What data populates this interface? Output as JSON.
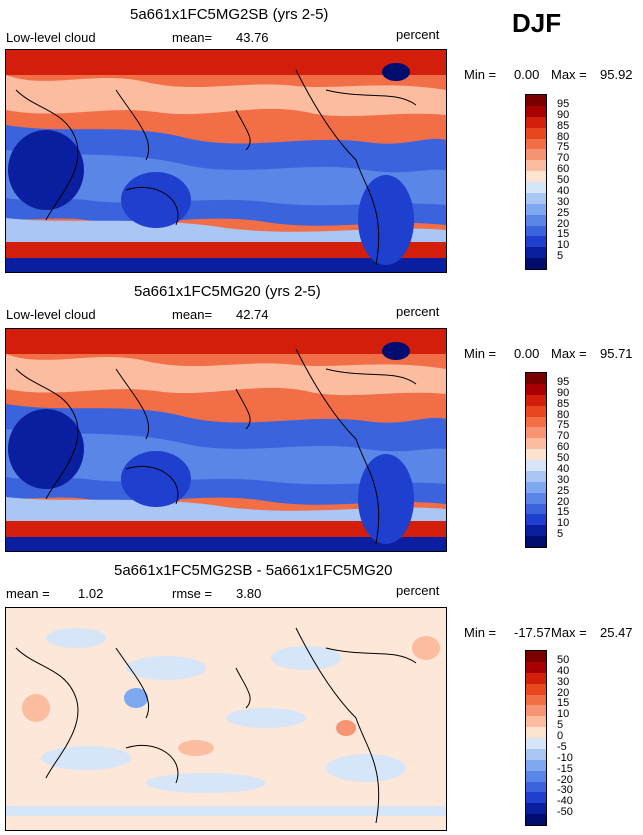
{
  "season": "DJF",
  "panels": [
    {
      "title": "5a661x1FC5MG2SB (yrs 2-5)",
      "left_label": "Low-level cloud",
      "stat_label": "mean=",
      "stat_value": "43.76",
      "unit": "percent",
      "min_label": "Min =",
      "min_value": "0.00",
      "max_label": "Max =",
      "max_value": "95.92",
      "colorbar_labels": [
        "95",
        "90",
        "85",
        "80",
        "75",
        "70",
        "60",
        "50",
        "40",
        "30",
        "25",
        "20",
        "15",
        "10",
        "5"
      ]
    },
    {
      "title": "5a661x1FC5MG20 (yrs 2-5)",
      "left_label": "Low-level cloud",
      "stat_label": "mean=",
      "stat_value": "42.74",
      "unit": "percent",
      "min_label": "Min =",
      "min_value": "0.00",
      "max_label": "Max =",
      "max_value": "95.71",
      "colorbar_labels": [
        "95",
        "90",
        "85",
        "80",
        "75",
        "70",
        "60",
        "50",
        "40",
        "30",
        "25",
        "20",
        "15",
        "10",
        "5"
      ]
    },
    {
      "title": "5a661x1FC5MG2SB - 5a661x1FC5MG20",
      "left_label": "mean =",
      "left_value": "1.02",
      "stat_label": "rmse =",
      "stat_value": "3.80",
      "unit": "percent",
      "min_label": "Min =",
      "min_value": "-17.57",
      "max_label": "Max =",
      "max_value": "25.47",
      "colorbar_labels": [
        "50",
        "40",
        "30",
        "20",
        "15",
        "10",
        "5",
        "0",
        "-5",
        "-10",
        "-15",
        "-20",
        "-30",
        "-40",
        "-50"
      ]
    }
  ],
  "colors": {
    "scale": [
      "#7a0000",
      "#a80000",
      "#d21e0a",
      "#e8461e",
      "#f26e46",
      "#f79473",
      "#fbbca0",
      "#fbe3cf",
      "#d6e6f8",
      "#a9c6f4",
      "#7ea8f0",
      "#5a86e8",
      "#3b63dd",
      "#1f3fcf",
      "#0a1f9f",
      "#000d6e"
    ],
    "diff_background": "#fde7d8",
    "land_line": "#000000"
  },
  "chart_data": [
    {
      "type": "heatmap",
      "title": "5a661x1FC5MG2SB (yrs 2-5)",
      "variable": "Low-level cloud",
      "units": "percent",
      "mean": 43.76,
      "min": 0.0,
      "max": 95.92,
      "levels": [
        5,
        10,
        15,
        20,
        25,
        30,
        40,
        50,
        60,
        70,
        75,
        80,
        85,
        90,
        95
      ]
    },
    {
      "type": "heatmap",
      "title": "5a661x1FC5MG20 (yrs 2-5)",
      "variable": "Low-level cloud",
      "units": "percent",
      "mean": 42.74,
      "min": 0.0,
      "max": 95.71,
      "levels": [
        5,
        10,
        15,
        20,
        25,
        30,
        40,
        50,
        60,
        70,
        75,
        80,
        85,
        90,
        95
      ]
    },
    {
      "type": "heatmap",
      "title": "5a661x1FC5MG2SB - 5a661x1FC5MG20",
      "units": "percent",
      "mean": 1.02,
      "rmse": 3.8,
      "min": -17.57,
      "max": 25.47,
      "levels": [
        -50,
        -40,
        -30,
        -20,
        -15,
        -10,
        -5,
        0,
        5,
        10,
        15,
        20,
        30,
        40,
        50
      ]
    }
  ]
}
